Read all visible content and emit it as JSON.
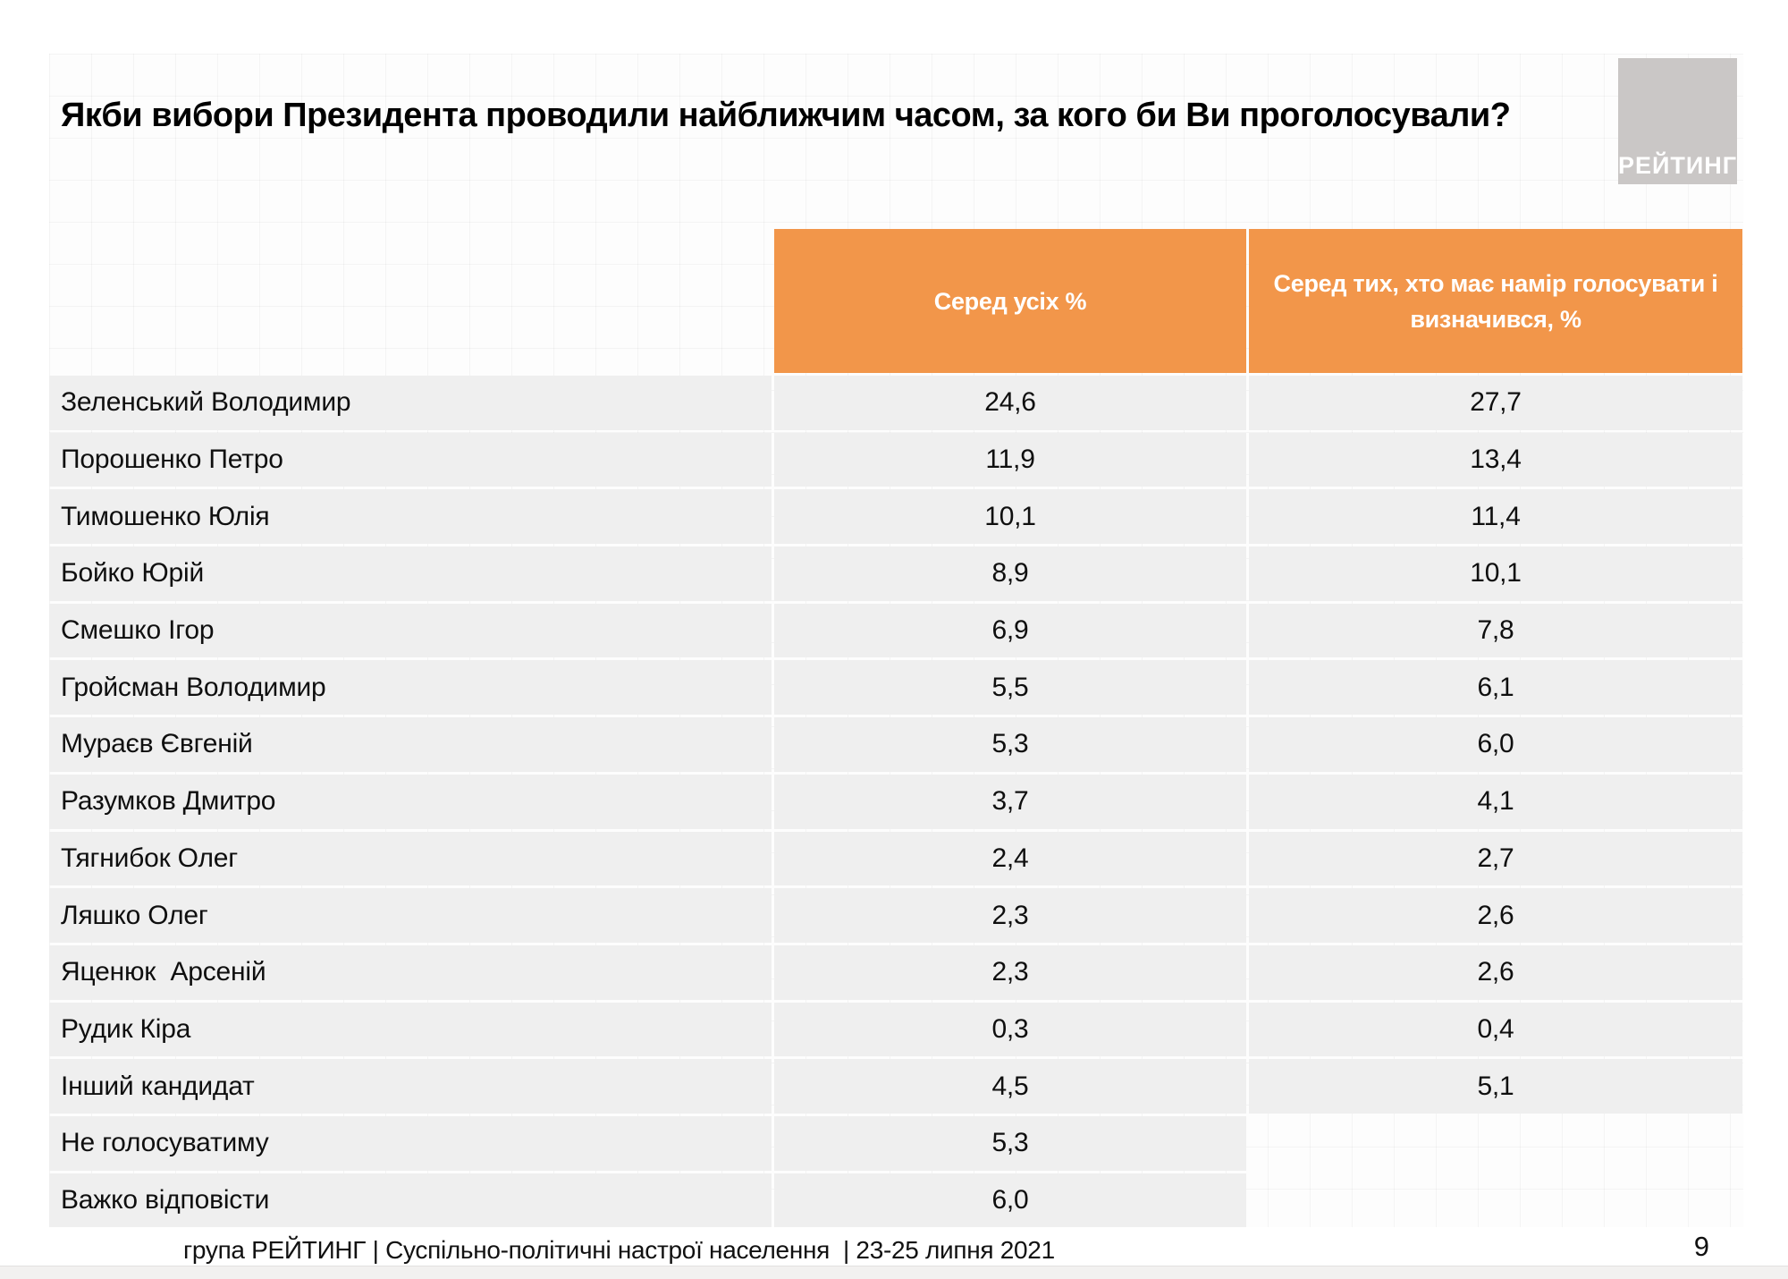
{
  "title": "Якби вибори Президента проводили найближчим часом, за кого би Ви проголосували?",
  "logo": {
    "text": "РЕЙТИНГ",
    "bg_color": "#cac7c6",
    "text_color": "#ffffff"
  },
  "colors": {
    "accent_orange": "#f2964a",
    "row_background": "#efefef",
    "logo_gray": "#cac7c6",
    "text": "#111111"
  },
  "table": {
    "columns": [
      {
        "label": "Серед усіх %"
      },
      {
        "label": "Серед тих, хто має намір голосувати і\nвизначився, %"
      }
    ],
    "rows": [
      {
        "name": "Зеленський Володимир",
        "all": "24,6",
        "decided": "27,7"
      },
      {
        "name": "Порошенко Петро",
        "all": "11,9",
        "decided": "13,4"
      },
      {
        "name": "Тимошенко Юлія",
        "all": "10,1",
        "decided": "11,4"
      },
      {
        "name": "Бойко Юрій",
        "all": "8,9",
        "decided": "10,1"
      },
      {
        "name": "Смешко Ігор",
        "all": "6,9",
        "decided": "7,8"
      },
      {
        "name": "Гройсман Володимир",
        "all": "5,5",
        "decided": "6,1"
      },
      {
        "name": "Мураєв Євгеній",
        "all": "5,3",
        "decided": "6,0"
      },
      {
        "name": "Разумков Дмитро",
        "all": "3,7",
        "decided": "4,1"
      },
      {
        "name": "Тягнибок Олег",
        "all": "2,4",
        "decided": "2,7"
      },
      {
        "name": "Ляшко Олег",
        "all": "2,3",
        "decided": "2,6"
      },
      {
        "name": "Яценюк  Арсеній",
        "all": "2,3",
        "decided": "2,6"
      },
      {
        "name": "Рудик Кіра",
        "all": "0,3",
        "decided": "0,4"
      },
      {
        "name": "Інший кандидат",
        "all": "4,5",
        "decided": "5,1"
      },
      {
        "name": "Не голосуватиму",
        "all": "5,3",
        "decided": null
      },
      {
        "name": "Важко відповісти",
        "all": "6,0",
        "decided": null
      }
    ]
  },
  "footer": {
    "text": "група РЕЙТИНГ | Суспільно-політичні настрої населення  | 23-25 липня 2021"
  },
  "page_number": "9",
  "chart_data": {
    "type": "table",
    "title": "Якби вибори Президента проводили найближчим часом, за кого би Ви проголосували?",
    "columns": [
      "Серед усіх %",
      "Серед тих, хто має намір голосувати і визначився, %"
    ],
    "categories": [
      "Зеленський Володимир",
      "Порошенко Петро",
      "Тимошенко Юлія",
      "Бойко Юрій",
      "Смешко Ігор",
      "Гройсман Володимир",
      "Мураєв Євгеній",
      "Разумков Дмитро",
      "Тягнибок Олег",
      "Ляшко Олег",
      "Яценюк Арсеній",
      "Рудик Кіра",
      "Інший кандидат",
      "Не голосуватиму",
      "Важко відповісти"
    ],
    "series": [
      {
        "name": "Серед усіх %",
        "values": [
          24.6,
          11.9,
          10.1,
          8.9,
          6.9,
          5.5,
          5.3,
          3.7,
          2.4,
          2.3,
          2.3,
          0.3,
          4.5,
          5.3,
          6.0
        ]
      },
      {
        "name": "Серед тих, хто має намір голосувати і визначився, %",
        "values": [
          27.7,
          13.4,
          11.4,
          10.1,
          7.8,
          6.1,
          6.0,
          4.1,
          2.7,
          2.6,
          2.6,
          0.4,
          5.1,
          null,
          null
        ]
      }
    ]
  }
}
